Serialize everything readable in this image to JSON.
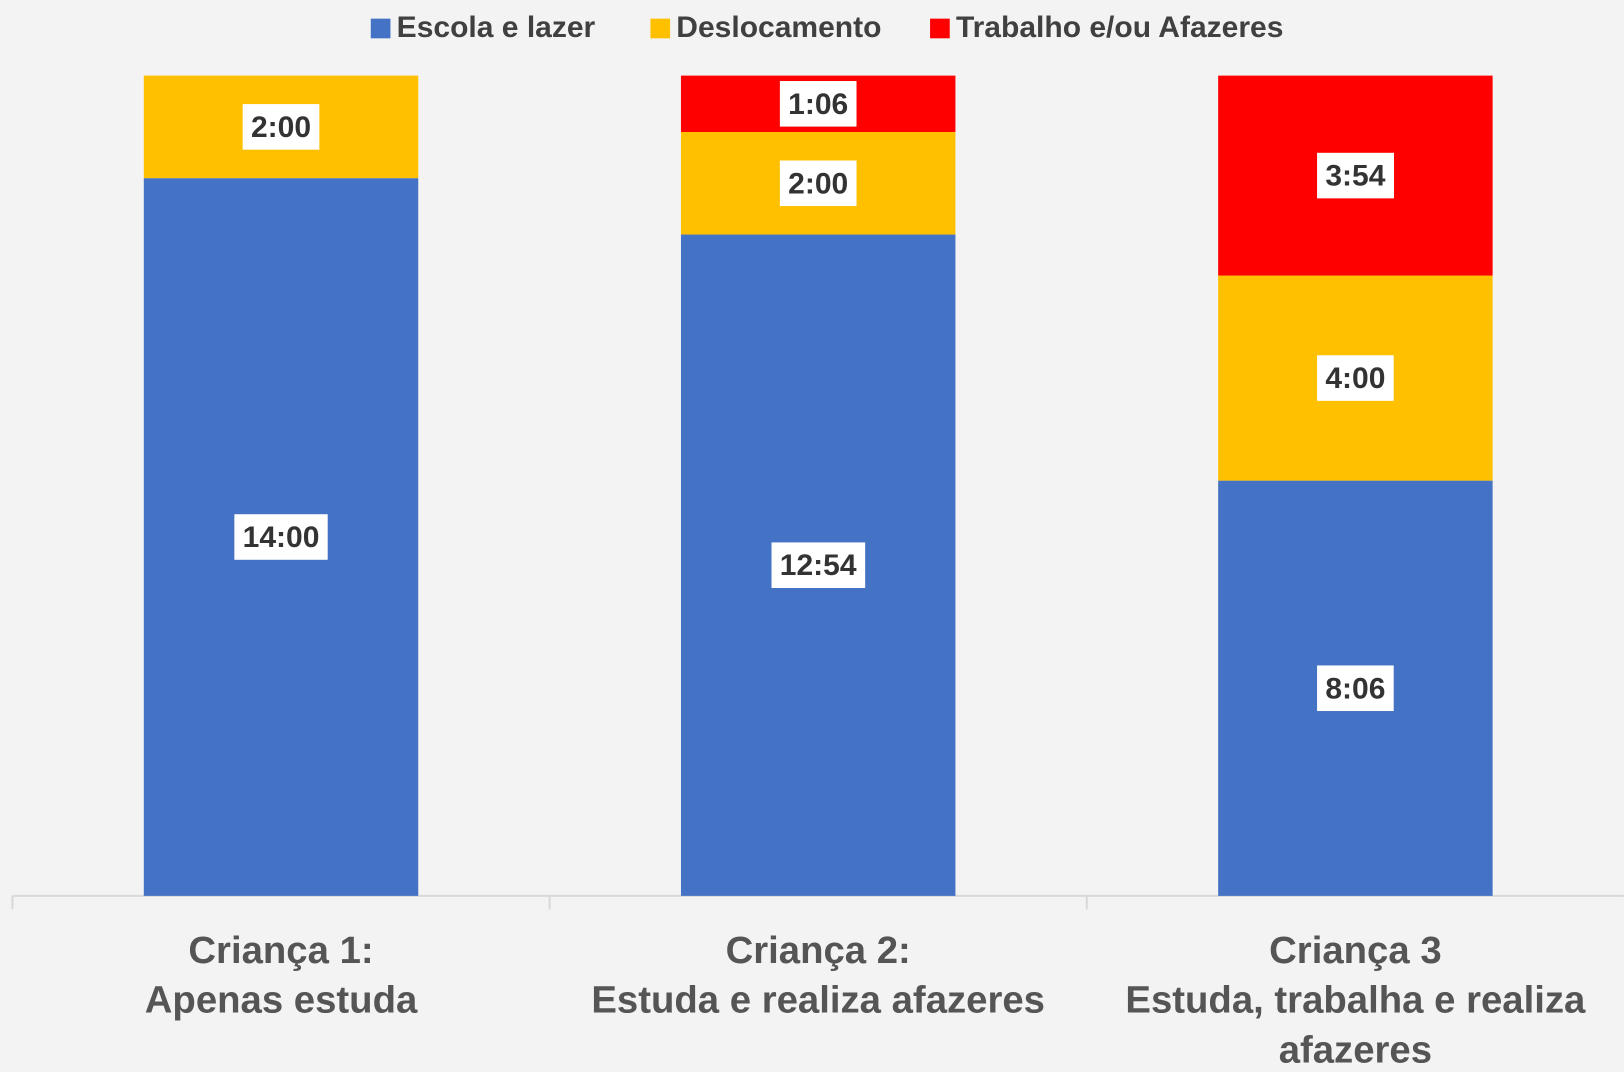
{
  "chart_data": {
    "type": "stacked-bar",
    "categories": [
      [
        "Criança 1:",
        "Apenas estuda"
      ],
      [
        "Criança 2:",
        "Estuda e realiza afazeres"
      ],
      [
        "Criança 3",
        "Estuda, trabalha e realiza",
        "afazeres"
      ]
    ],
    "series": [
      {
        "name": "Escola e lazer",
        "color": "#4472c4",
        "values": [
          14,
          12.9,
          8.1
        ],
        "value_labels": [
          "14:00",
          "12:54",
          "8:06"
        ]
      },
      {
        "name": "Deslocamento",
        "color": "#ffc000",
        "values": [
          2,
          2,
          4
        ],
        "value_labels": [
          "2:00",
          "2:00",
          "4:00"
        ]
      },
      {
        "name": "Trabalho e/ou Afazeres",
        "color": "#ff0000",
        "values": [
          null,
          1.1,
          3.9
        ],
        "value_labels": [
          null,
          "1:06",
          "3:54"
        ]
      }
    ],
    "ylim": [
      0,
      16
    ],
    "legend": "top"
  }
}
